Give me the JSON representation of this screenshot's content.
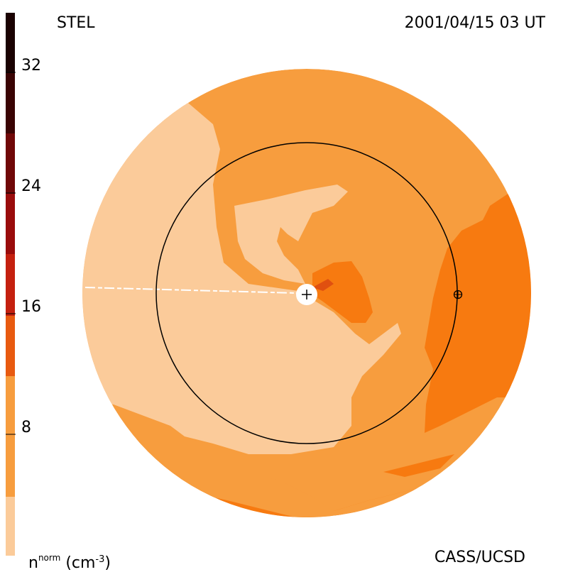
{
  "header": {
    "observatory": "STEL",
    "timestamp": "2001/04/15 03 UT"
  },
  "footer": {
    "credit": "CASS/UCSD",
    "unit_base": "n",
    "unit_super": "norm",
    "unit_paren": "(cm",
    "unit_exp": "-3",
    "unit_close": ")"
  },
  "colorbar": {
    "ticks": [
      "32",
      "24",
      "16",
      "8"
    ],
    "range": [
      0,
      36
    ],
    "colors": [
      "#fbcb9a",
      "#f79d3e",
      "#f77a10",
      "#e85a10",
      "#c4200f",
      "#9a0c0c",
      "#700808",
      "#3a0404",
      "#1a0202"
    ]
  },
  "map": {
    "palette": {
      "lightest": "#fbcb9a",
      "light": "#f79d3e",
      "medium": "#f77a10",
      "dark": "#e35a10",
      "darkest": "#c0300f"
    },
    "earth_marker": "+",
    "sun_marker": "⊕"
  }
}
